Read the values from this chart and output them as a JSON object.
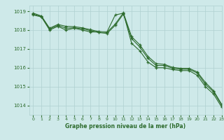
{
  "background_color": "#cee9e9",
  "grid_color": "#afd0d0",
  "line_color": "#2d6b2d",
  "xlabel": "Graphe pression niveau de la mer (hPa)",
  "xlim": [
    -0.5,
    23
  ],
  "ylim": [
    1013.5,
    1019.3
  ],
  "yticks": [
    1014,
    1015,
    1016,
    1017,
    1018,
    1019
  ],
  "xticks": [
    0,
    1,
    2,
    3,
    4,
    5,
    6,
    7,
    8,
    9,
    10,
    11,
    12,
    13,
    14,
    15,
    16,
    17,
    18,
    19,
    20,
    21,
    22,
    23
  ],
  "series": [
    [
      1018.8,
      1018.7,
      1018.0,
      1018.2,
      1018.0,
      1018.1,
      1018.0,
      1017.9,
      1017.9,
      1017.9,
      1018.8,
      1018.9,
      1017.3,
      1016.9,
      1016.3,
      1016.0,
      1016.0,
      1015.9,
      1015.85,
      1015.85,
      1015.6,
      1015.0,
      1014.6,
      1013.9
    ],
    [
      1018.85,
      1018.72,
      1018.05,
      1018.25,
      1018.1,
      1018.12,
      1018.07,
      1017.97,
      1017.87,
      1017.82,
      1018.25,
      1018.85,
      1017.55,
      1017.1,
      1016.5,
      1016.12,
      1016.12,
      1015.97,
      1015.92,
      1015.92,
      1015.72,
      1015.12,
      1014.72,
      1014.0
    ],
    [
      1018.9,
      1018.75,
      1018.1,
      1018.3,
      1018.2,
      1018.18,
      1018.12,
      1018.02,
      1017.92,
      1017.88,
      1018.32,
      1018.92,
      1017.65,
      1017.22,
      1016.6,
      1016.22,
      1016.18,
      1016.02,
      1015.97,
      1015.97,
      1015.78,
      1015.22,
      1014.78,
      1014.05
    ]
  ]
}
